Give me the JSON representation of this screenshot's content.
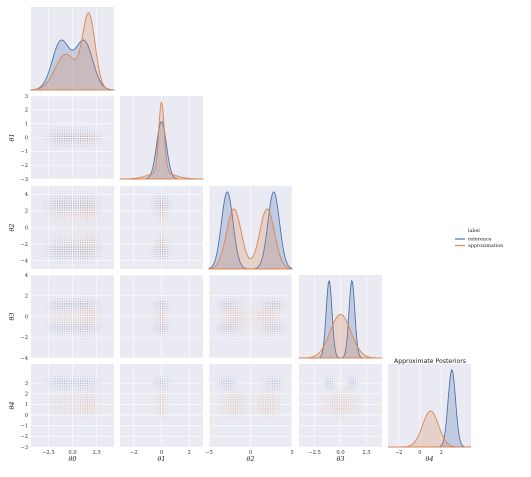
{
  "chart_data": {
    "type": "pairplot",
    "title": "Approximate Posteriors",
    "variables": [
      "θ0",
      "θ1",
      "θ2",
      "θ3",
      "θ4"
    ],
    "axis_labels": [
      "θ0",
      "θ1",
      "θ2",
      "θ3",
      "θ4"
    ],
    "legend": {
      "title": "label",
      "placement": "right",
      "entries": [
        {
          "name": "reference",
          "color": "#4c72b0"
        },
        {
          "name": "approximation",
          "color": "#dd8452"
        }
      ]
    },
    "ranges": [
      [
        -4.3,
        4.3
      ],
      [
        -3,
        3
      ],
      [
        -5,
        5
      ],
      [
        -4,
        4
      ],
      [
        -3,
        4.8
      ]
    ],
    "x_ticks": [
      [
        -2.5,
        0.0,
        2.5
      ],
      [
        -2,
        0,
        2
      ],
      [
        -5,
        0,
        5
      ],
      [
        -2.5,
        0.0,
        2.5
      ],
      [
        -2,
        0,
        2
      ]
    ],
    "x_tick_labels": [
      [
        "−2.5",
        "0.0",
        "2.5"
      ],
      [
        "−2",
        "0",
        "2"
      ],
      [
        "−5",
        "0",
        "5"
      ],
      [
        "−2.5",
        "0.0",
        "2.5"
      ],
      [
        "−2",
        "0",
        "2"
      ]
    ],
    "y_ticks": [
      null,
      [
        -3,
        -2,
        -1,
        0,
        1,
        2,
        3
      ],
      [
        -4,
        -2,
        0,
        2,
        4
      ],
      [
        -4,
        -2,
        0,
        2,
        4
      ],
      [
        -3,
        -2,
        -1,
        0,
        1,
        2,
        3
      ]
    ],
    "y_tick_labels": [
      null,
      [
        "−3",
        "−2",
        "−1",
        "0",
        "1",
        "2",
        "3"
      ],
      [
        "−4",
        "−2",
        "0",
        "2",
        "4"
      ],
      [
        "−4",
        "−2",
        "0",
        "2",
        "4"
      ],
      [
        "−3",
        "−2",
        "−1",
        "0",
        "1",
        "2",
        "3"
      ]
    ],
    "series": [
      {
        "name": "reference",
        "color": "#4c72b0",
        "marginals": [
          {
            "components": [
              {
                "mu": -1.2,
                "sigma": 0.9,
                "w": 0.5
              },
              {
                "mu": 1.2,
                "sigma": 0.9,
                "w": 0.5
              }
            ]
          },
          {
            "components": [
              {
                "mu": 0,
                "sigma": 0.35,
                "w": 1
              }
            ]
          },
          {
            "components": [
              {
                "mu": -2.8,
                "sigma": 0.7,
                "w": 0.5
              },
              {
                "mu": 2.8,
                "sigma": 0.7,
                "w": 0.5
              }
            ]
          },
          {
            "components": [
              {
                "mu": -1.1,
                "sigma": 0.28,
                "w": 0.5
              },
              {
                "mu": 1.1,
                "sigma": 0.28,
                "w": 0.5
              }
            ]
          },
          {
            "components": [
              {
                "mu": 3.0,
                "sigma": 0.35,
                "w": 1
              }
            ]
          }
        ]
      },
      {
        "name": "approximation",
        "color": "#dd8452",
        "marginals": [
          {
            "components": [
              {
                "mu": -0.7,
                "sigma": 1.1,
                "w": 0.45
              },
              {
                "mu": 1.7,
                "sigma": 0.65,
                "w": 0.55
              }
            ]
          },
          {
            "components": [
              {
                "mu": 0,
                "sigma": 0.2,
                "w": 0.7
              },
              {
                "mu": 0,
                "sigma": 0.9,
                "w": 0.3
              }
            ]
          },
          {
            "components": [
              {
                "mu": -2.0,
                "sigma": 0.9,
                "w": 0.5
              },
              {
                "mu": 2.0,
                "sigma": 0.9,
                "w": 0.5
              }
            ]
          },
          {
            "components": [
              {
                "mu": 0,
                "sigma": 1.0,
                "w": 1
              }
            ]
          },
          {
            "components": [
              {
                "mu": 1.0,
                "sigma": 0.75,
                "w": 1
              }
            ]
          }
        ]
      }
    ],
    "background": "#eaeaf2",
    "grid": true
  }
}
